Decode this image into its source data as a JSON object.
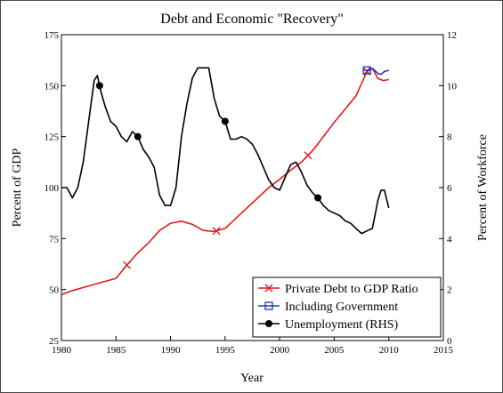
{
  "chart_data": {
    "type": "line",
    "title": "Debt and Economic \"Recovery\"",
    "xlabel": "Year",
    "ylabel_left": "Percent of GDP",
    "ylabel_right": "Percent of Workforce",
    "xlim": [
      1980,
      2015
    ],
    "ylim_left": [
      25,
      175
    ],
    "ylim_right": [
      0,
      12
    ],
    "x_ticks": [
      "1980",
      "1985",
      "1990",
      "1995",
      "2000",
      "2005",
      "2010",
      "2015"
    ],
    "y_ticks_left": [
      "25",
      "50",
      "75",
      "100",
      "125",
      "150",
      "175"
    ],
    "y_ticks_right": [
      "0",
      "2",
      "4",
      "6",
      "8",
      "10",
      "12"
    ],
    "grid": false,
    "legend_position": "bottom-right",
    "series": [
      {
        "name": "Private Debt to GDP Ratio",
        "axis": "left",
        "color": "#e31a1a",
        "marker": "x",
        "x": [
          1980.0,
          1981.0,
          1982.0,
          1983.0,
          1984.0,
          1985.0,
          1986.0,
          1987.0,
          1988.0,
          1989.0,
          1990.0,
          1991.0,
          1992.0,
          1993.0,
          1994.0,
          1995.0,
          1996.0,
          1997.0,
          1998.0,
          1999.0,
          2000.0,
          2001.0,
          2002.0,
          2003.0,
          2004.0,
          2005.0,
          2006.0,
          2007.0,
          2008.0,
          2008.5,
          2009.0,
          2009.5,
          2010.0
        ],
        "y": [
          47.5,
          49.5,
          51.0,
          52.5,
          54.0,
          55.5,
          62.0,
          68.0,
          73.0,
          79.0,
          82.5,
          83.5,
          82.0,
          79.0,
          78.5,
          80.0,
          85.0,
          90.0,
          95.0,
          100.0,
          104.0,
          108.5,
          112.5,
          118.0,
          125.0,
          132.0,
          138.5,
          145.0,
          157.0,
          158.5,
          153.5,
          152.5,
          153.0
        ],
        "markers_at_x": [
          1986.0,
          1994.2,
          2002.6,
          2008.0
        ]
      },
      {
        "name": "Including Government",
        "axis": "left",
        "color": "#1f3ab4",
        "marker": "square",
        "x": [
          2008.0,
          2008.3,
          2008.6,
          2009.0,
          2009.3,
          2009.6,
          2010.0
        ],
        "y": [
          157.5,
          158.5,
          158.0,
          156.0,
          155.5,
          157.0,
          157.5
        ],
        "markers_at_x": [
          2008.0
        ]
      },
      {
        "name": "Unemployment (RHS)",
        "axis": "right",
        "color": "#000000",
        "marker": "circle",
        "x": [
          1980.0,
          1980.5,
          1981.0,
          1981.5,
          1982.0,
          1982.5,
          1983.0,
          1983.3,
          1983.6,
          1984.0,
          1984.5,
          1985.0,
          1985.5,
          1986.0,
          1986.5,
          1987.0,
          1987.5,
          1988.0,
          1988.5,
          1989.0,
          1989.5,
          1990.0,
          1990.5,
          1991.0,
          1991.5,
          1992.0,
          1992.5,
          1993.0,
          1993.5,
          1994.0,
          1994.5,
          1995.0,
          1995.5,
          1996.0,
          1996.5,
          1997.0,
          1997.5,
          1998.0,
          1998.5,
          1999.0,
          1999.5,
          2000.0,
          2000.5,
          2001.0,
          2001.5,
          2002.0,
          2002.5,
          2003.0,
          2003.5,
          2004.0,
          2004.5,
          2005.0,
          2005.5,
          2006.0,
          2006.5,
          2007.0,
          2007.5,
          2008.0,
          2008.5,
          2009.0,
          2009.3,
          2009.6,
          2010.0
        ],
        "y": [
          6.0,
          6.0,
          5.6,
          6.0,
          7.0,
          8.6,
          10.2,
          10.4,
          9.8,
          9.2,
          8.6,
          8.4,
          8.0,
          7.8,
          8.2,
          8.0,
          7.5,
          7.2,
          6.8,
          5.7,
          5.3,
          5.3,
          6.0,
          8.0,
          9.3,
          10.3,
          10.7,
          10.7,
          10.7,
          9.5,
          8.8,
          8.6,
          7.9,
          7.9,
          8.0,
          7.9,
          7.7,
          7.3,
          6.8,
          6.3,
          6.0,
          5.9,
          6.4,
          6.9,
          7.0,
          6.6,
          6.1,
          5.8,
          5.6,
          5.3,
          5.1,
          5.0,
          4.9,
          4.7,
          4.6,
          4.4,
          4.2,
          4.3,
          4.4,
          5.5,
          5.9,
          5.9,
          5.2
        ],
        "markers_at_x": [
          1983.5,
          1987.0,
          1995.0,
          2003.5
        ]
      }
    ]
  }
}
